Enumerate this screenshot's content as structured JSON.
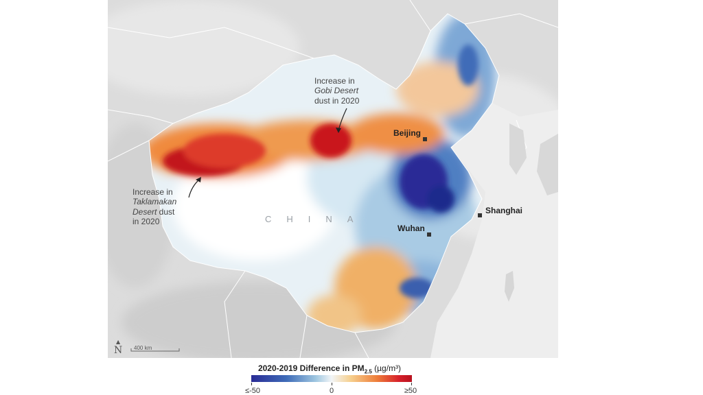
{
  "map": {
    "country_label": "CHINA",
    "cities": [
      {
        "name": "Beijing"
      },
      {
        "name": "Shanghai"
      },
      {
        "name": "Wuhan"
      }
    ],
    "annotations": {
      "gobi": {
        "line1": "Increase in",
        "italic": "Gobi Desert",
        "line3": "dust in 2020"
      },
      "taklamakan": {
        "line1": "Increase in",
        "italic1": "Taklamakan",
        "italic2": "Desert",
        "tail2": " dust",
        "line4": "in 2020"
      }
    },
    "scale_bar": {
      "label": "400 km"
    },
    "north_symbol": "N"
  },
  "legend": {
    "title_main": "2020-2019 Difference in PM",
    "title_sub": "2.5",
    "title_unit": " (µg/m³)",
    "ticks": [
      "≤-50",
      "0",
      "≥50"
    ],
    "colors": {
      "low": "#2a2c96",
      "mid": "#f2f5f7",
      "high": "#b8121f"
    }
  }
}
